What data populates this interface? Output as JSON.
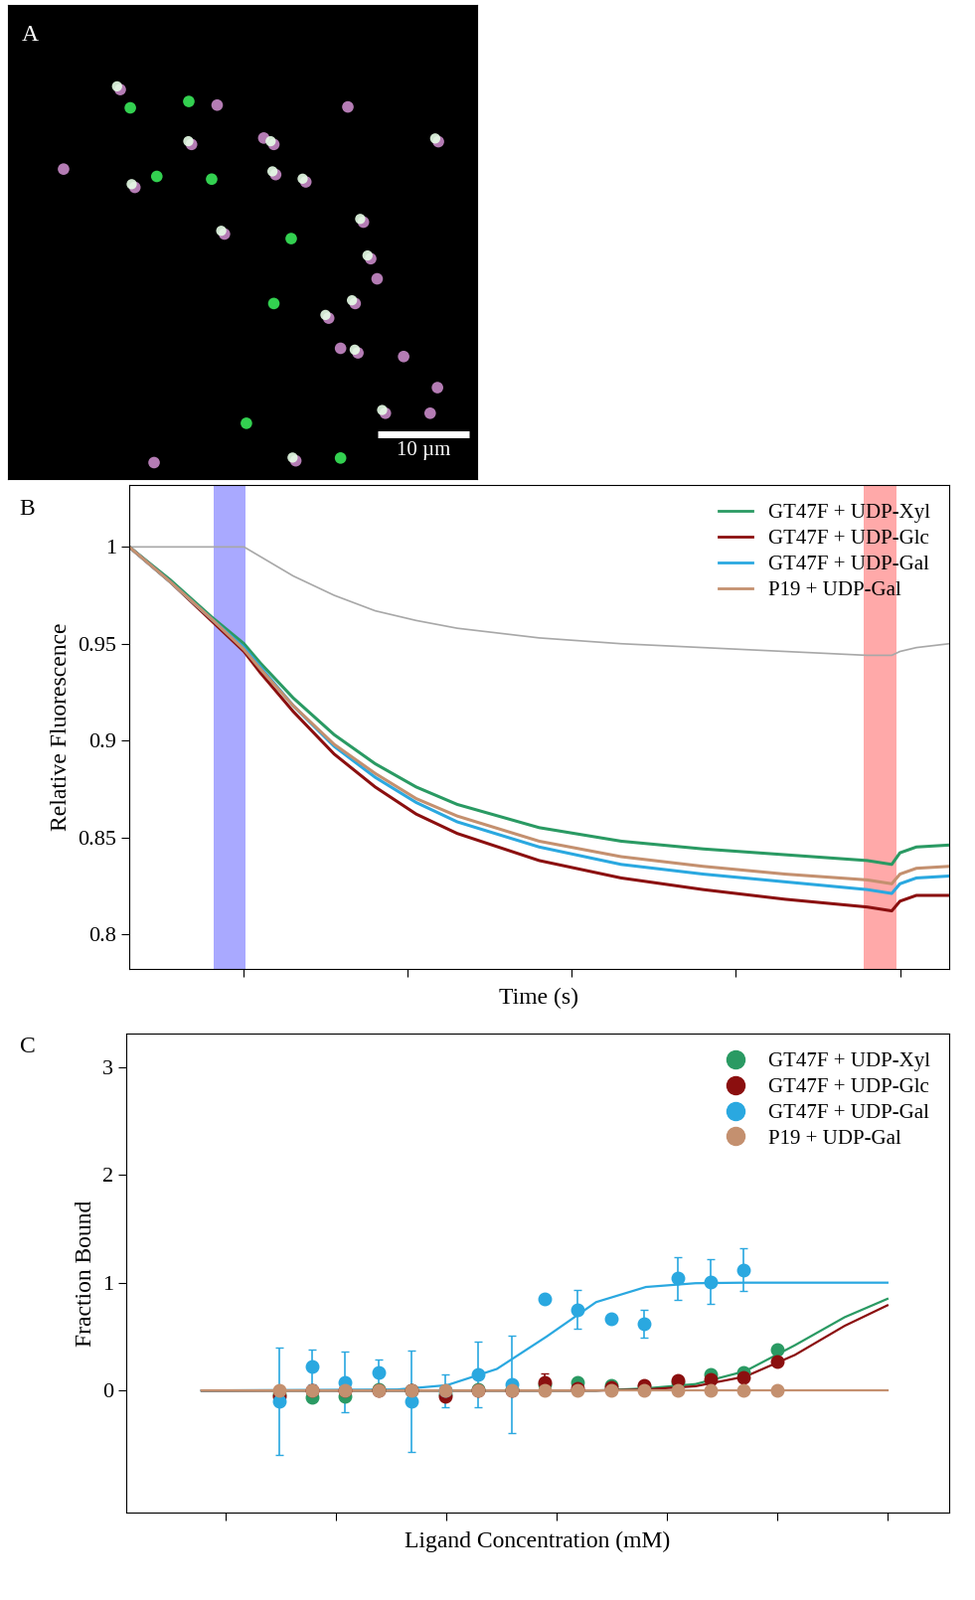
{
  "image_panel": {
    "panel": "A",
    "extent_um": [
      0,
      51.3,
      0,
      51.8
    ],
    "scale_bar": {
      "length_um": 10,
      "label": "10 µm"
    },
    "spots": [
      {
        "x": 12.3,
        "y": 9.2,
        "kind": "both"
      },
      {
        "x": 13.4,
        "y": 11.2,
        "kind": "green"
      },
      {
        "x": 19.8,
        "y": 10.5,
        "kind": "green"
      },
      {
        "x": 22.9,
        "y": 10.9,
        "kind": "magenta"
      },
      {
        "x": 20.1,
        "y": 15.2,
        "kind": "both"
      },
      {
        "x": 13.9,
        "y": 19.9,
        "kind": "both"
      },
      {
        "x": 6.1,
        "y": 17.9,
        "kind": "magenta"
      },
      {
        "x": 16.3,
        "y": 18.7,
        "kind": "green"
      },
      {
        "x": 22.3,
        "y": 19.0,
        "kind": "green"
      },
      {
        "x": 23.7,
        "y": 25.0,
        "kind": "both"
      },
      {
        "x": 28.0,
        "y": 14.5,
        "kind": "magenta"
      },
      {
        "x": 29.3,
        "y": 18.5,
        "kind": "both"
      },
      {
        "x": 32.6,
        "y": 19.3,
        "kind": "both"
      },
      {
        "x": 29.1,
        "y": 15.2,
        "kind": "both"
      },
      {
        "x": 31.0,
        "y": 25.5,
        "kind": "green"
      },
      {
        "x": 38.9,
        "y": 23.7,
        "kind": "both"
      },
      {
        "x": 39.7,
        "y": 27.7,
        "kind": "both"
      },
      {
        "x": 40.4,
        "y": 29.9,
        "kind": "magenta"
      },
      {
        "x": 38.0,
        "y": 32.6,
        "kind": "both"
      },
      {
        "x": 35.1,
        "y": 34.2,
        "kind": "both"
      },
      {
        "x": 29.1,
        "y": 32.6,
        "kind": "green"
      },
      {
        "x": 36.4,
        "y": 37.5,
        "kind": "magenta"
      },
      {
        "x": 38.3,
        "y": 38.0,
        "kind": "both"
      },
      {
        "x": 43.3,
        "y": 38.4,
        "kind": "magenta"
      },
      {
        "x": 41.3,
        "y": 44.6,
        "kind": "both"
      },
      {
        "x": 46.2,
        "y": 44.6,
        "kind": "magenta"
      },
      {
        "x": 26.1,
        "y": 45.7,
        "kind": "green"
      },
      {
        "x": 31.5,
        "y": 49.8,
        "kind": "both"
      },
      {
        "x": 36.4,
        "y": 49.5,
        "kind": "green"
      },
      {
        "x": 47.1,
        "y": 14.9,
        "kind": "both"
      },
      {
        "x": 47.0,
        "y": 41.8,
        "kind": "magenta"
      },
      {
        "x": 37.2,
        "y": 11.1,
        "kind": "magenta"
      },
      {
        "x": 16.0,
        "y": 50.0,
        "kind": "magenta"
      }
    ]
  },
  "chart_data": [
    {
      "panel": "B",
      "type": "line",
      "x_label": "Time (s)",
      "y_label": "Relative Fluorescence",
      "x": [
        0,
        5,
        10,
        14,
        16,
        20,
        25,
        30,
        35,
        40,
        50,
        60,
        70,
        80,
        90,
        93,
        94,
        96,
        100
      ],
      "xlim": [
        0,
        100
      ],
      "xticks": [
        14,
        34,
        54,
        74,
        94
      ],
      "ylim": [
        0.782,
        1.032
      ],
      "yticks": [
        0.8,
        0.85,
        0.9,
        0.95,
        1
      ],
      "tick_labels": "y",
      "grid": false,
      "legend": "upper right",
      "bands": [
        {
          "x": [
            10.3,
            14.2
          ],
          "color": "#8c8cff"
        },
        {
          "x": [
            89.6,
            93.6
          ],
          "color": "#ff8c8c"
        }
      ],
      "series": [
        {
          "name": null,
          "color": "#a8a8a8",
          "values": [
            1,
            1.0,
            1.0,
            1.0,
            0.995,
            0.985,
            0.975,
            0.967,
            0.962,
            0.958,
            0.953,
            0.95,
            0.948,
            0.946,
            0.944,
            0.944,
            0.946,
            0.948,
            0.95
          ]
        },
        {
          "name": "GT47F + UDP-Xyl",
          "color": "#2a9a63",
          "values": [
            1,
            0.983,
            0.964,
            0.95,
            0.94,
            0.922,
            0.903,
            0.888,
            0.876,
            0.867,
            0.855,
            0.848,
            0.844,
            0.841,
            0.838,
            0.836,
            0.842,
            0.845,
            0.846
          ]
        },
        {
          "name": "GT47F + UDP-Glc",
          "color": "#8b0f0f",
          "values": [
            1,
            0.982,
            0.962,
            0.946,
            0.935,
            0.915,
            0.893,
            0.876,
            0.862,
            0.852,
            0.838,
            0.829,
            0.823,
            0.818,
            0.814,
            0.812,
            0.817,
            0.82,
            0.82
          ]
        },
        {
          "name": "GT47F + UDP-Gal",
          "color": "#2aa8e0",
          "values": [
            1,
            0.982,
            0.963,
            0.948,
            0.938,
            0.918,
            0.897,
            0.881,
            0.868,
            0.858,
            0.845,
            0.836,
            0.831,
            0.827,
            0.823,
            0.821,
            0.826,
            0.829,
            0.83
          ]
        },
        {
          "name": "P19 + UDP-Gal",
          "color": "#c4906f",
          "values": [
            1,
            0.982,
            0.963,
            0.947,
            0.937,
            0.918,
            0.898,
            0.883,
            0.87,
            0.861,
            0.848,
            0.84,
            0.835,
            0.831,
            0.828,
            0.826,
            0.831,
            0.834,
            0.835
          ]
        }
      ]
    },
    {
      "panel": "C",
      "type": "scatter",
      "x_label": "Ligand Concentration (mM)",
      "y_label": "Fraction Bound",
      "log": "x",
      "xlim": [
        1.26e-05,
        363
      ],
      "xticks": [
        0.0001,
        0.001,
        0.01,
        0.1,
        1,
        10,
        100
      ],
      "ylim": [
        -1.13,
        3.31
      ],
      "yticks": [
        0,
        1,
        2,
        3
      ],
      "tick_labels": "y",
      "grid": false,
      "legend": "upper right",
      "series": [
        {
          "name": null,
          "type": "line",
          "color": "#2aa8e0",
          "x": [
            6.08e-05,
            0.00362,
            0.0102,
            0.0288,
            0.0813,
            0.229,
            0.647,
            1.82,
            5.15,
            100
          ],
          "values": [
            0,
            0.01,
            0.05,
            0.2,
            0.5,
            0.82,
            0.96,
            0.995,
            1.0,
            1.0
          ]
        },
        {
          "name": null,
          "type": "line",
          "color": "#2a9a63",
          "x": [
            6.08e-05,
            0.229,
            0.647,
            1.82,
            5.15,
            14.5,
            41.0,
            100
          ],
          "values": [
            0,
            0,
            0.02,
            0.06,
            0.18,
            0.42,
            0.68,
            0.85
          ]
        },
        {
          "name": null,
          "type": "line",
          "color": "#8b0f0f",
          "x": [
            6.08e-05,
            0.229,
            0.647,
            1.82,
            5.15,
            14.5,
            41.0,
            100
          ],
          "values": [
            0,
            0,
            0.01,
            0.04,
            0.13,
            0.33,
            0.6,
            0.79
          ]
        },
        {
          "name": null,
          "type": "line",
          "color": "#c4906f",
          "x": [
            6.08e-05,
            100
          ],
          "values": [
            0,
            0
          ]
        },
        {
          "name": "GT47F + UDP-Xyl",
          "type": "scatter",
          "color": "#2a9a63",
          "x": [
            0.000305,
            0.00061,
            0.00122,
            0.00244,
            0.00488,
            0.00977,
            0.0195,
            0.0391,
            0.0781,
            0.156,
            0.3125,
            0.625,
            1.25,
            2.5,
            5,
            10
          ],
          "values": [
            -0.03,
            -0.06,
            -0.05,
            0.01,
            0.0,
            -0.03,
            0.01,
            0.01,
            0.06,
            0.08,
            0.05,
            0.04,
            0.08,
            0.15,
            0.17,
            0.38
          ]
        },
        {
          "name": "GT47F + UDP-Glc",
          "type": "scatter",
          "color": "#8b0f0f",
          "x": [
            0.000305,
            0.00061,
            0.00122,
            0.00244,
            0.00488,
            0.00977,
            0.0195,
            0.0391,
            0.0781,
            0.156,
            0.3125,
            0.625,
            1.25,
            2.5,
            5,
            10
          ],
          "values": [
            -0.05,
            0.0,
            0.0,
            0.0,
            0.0,
            -0.05,
            0.0,
            0.0,
            0.08,
            0.02,
            0.03,
            0.05,
            0.09,
            0.1,
            0.12,
            0.27
          ],
          "errors": [
            null,
            null,
            null,
            null,
            null,
            null,
            null,
            null,
            0.08,
            null,
            null,
            null,
            null,
            null,
            null,
            null
          ]
        },
        {
          "name": "GT47F + UDP-Gal",
          "type": "scatter",
          "color": "#2aa8e0",
          "x": [
            0.000305,
            0.00061,
            0.00122,
            0.00244,
            0.00488,
            0.00977,
            0.0195,
            0.0391,
            0.0781,
            0.156,
            0.3125,
            0.625,
            1.25,
            2.5,
            5
          ],
          "values": [
            -0.1,
            0.22,
            0.08,
            0.17,
            -0.1,
            0.0,
            0.15,
            0.06,
            0.85,
            0.75,
            0.67,
            0.62,
            1.04,
            1.01,
            1.12
          ],
          "errors": [
            0.5,
            0.16,
            0.28,
            0.12,
            0.47,
            0.15,
            0.3,
            0.45,
            null,
            0.18,
            null,
            0.13,
            0.2,
            0.21,
            0.2
          ]
        },
        {
          "name": "P19 + UDP-Gal",
          "type": "scatter",
          "color": "#c4906f",
          "x": [
            0.000305,
            0.00061,
            0.00122,
            0.00244,
            0.00488,
            0.00977,
            0.0195,
            0.0391,
            0.0781,
            0.156,
            0.3125,
            0.625,
            1.25,
            2.5,
            5,
            10
          ],
          "values": [
            0,
            0,
            0,
            0,
            0,
            0,
            0,
            0,
            0,
            0,
            0,
            0,
            0,
            0,
            0,
            0
          ]
        }
      ]
    }
  ]
}
